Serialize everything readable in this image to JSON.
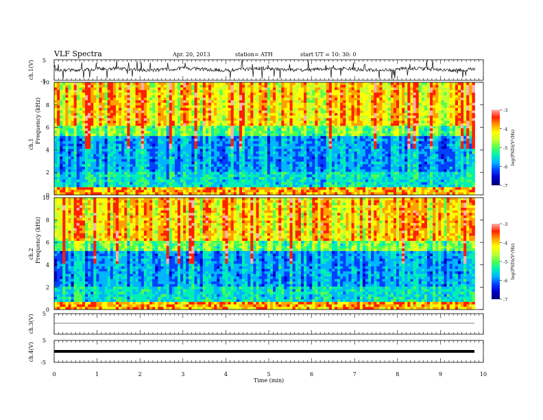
{
  "header": {
    "title": "VLF  Spectra",
    "date": "Apr. 20, 2013",
    "station": "station= ATH",
    "start": "start  UT  =    10: 30: 0"
  },
  "chart_data": [
    {
      "type": "line",
      "ylabel": "ch.1(V)",
      "yticks": [
        "5",
        "-5"
      ],
      "ylim": [
        -5,
        5
      ],
      "description": "waveform noise with frequent spikes",
      "xlim": [
        0,
        10
      ]
    },
    {
      "type": "heatmap",
      "ylabel": "ch.1 Frequency (kHz)",
      "yticks": [
        "0",
        "2",
        "4",
        "6",
        "8",
        "10"
      ],
      "ylim": [
        0,
        10
      ],
      "xlim": [
        0,
        10
      ],
      "colorbar_label": "log(PSD)(V²/Hz)",
      "colorbar_ticks": [
        "-3",
        "-4",
        "-5",
        "-6",
        "-7"
      ],
      "colorbar_range": [
        -7,
        -3
      ]
    },
    {
      "type": "heatmap",
      "ylabel": "ch.2 Frequency (kHz)",
      "yticks": [
        "0",
        "2",
        "4",
        "6",
        "8",
        "10"
      ],
      "ylim": [
        0,
        10
      ],
      "xlim": [
        0,
        10
      ],
      "colorbar_label": "log(PSD)(V²/Hz)",
      "colorbar_ticks": [
        "-3",
        "-4",
        "-5",
        "-6",
        "-7"
      ],
      "colorbar_range": [
        -7,
        -3
      ]
    },
    {
      "type": "line",
      "ylabel": "ch.3(V)",
      "yticks": [
        "5",
        "-5"
      ],
      "ylim": [
        -5,
        5
      ],
      "xlim": [
        0,
        10
      ]
    },
    {
      "type": "line",
      "ylabel": "ch.4(V)",
      "yticks": [
        "5",
        "-5"
      ],
      "ylim": [
        -5,
        5
      ],
      "xlim": [
        0,
        10
      ]
    }
  ],
  "x_axis": {
    "label": "Time  (min)",
    "ticks": [
      "0",
      "1",
      "2",
      "3",
      "4",
      "5",
      "6",
      "7",
      "8",
      "9",
      "10"
    ],
    "data_end": 9.8
  },
  "colors": {
    "colormap": [
      "#000070",
      "#0000c8",
      "#0040ff",
      "#00b4ff",
      "#00f0b4",
      "#50ff50",
      "#c8ff32",
      "#ffff00",
      "#ffa000",
      "#ff2000",
      "#ffb0b0"
    ]
  }
}
